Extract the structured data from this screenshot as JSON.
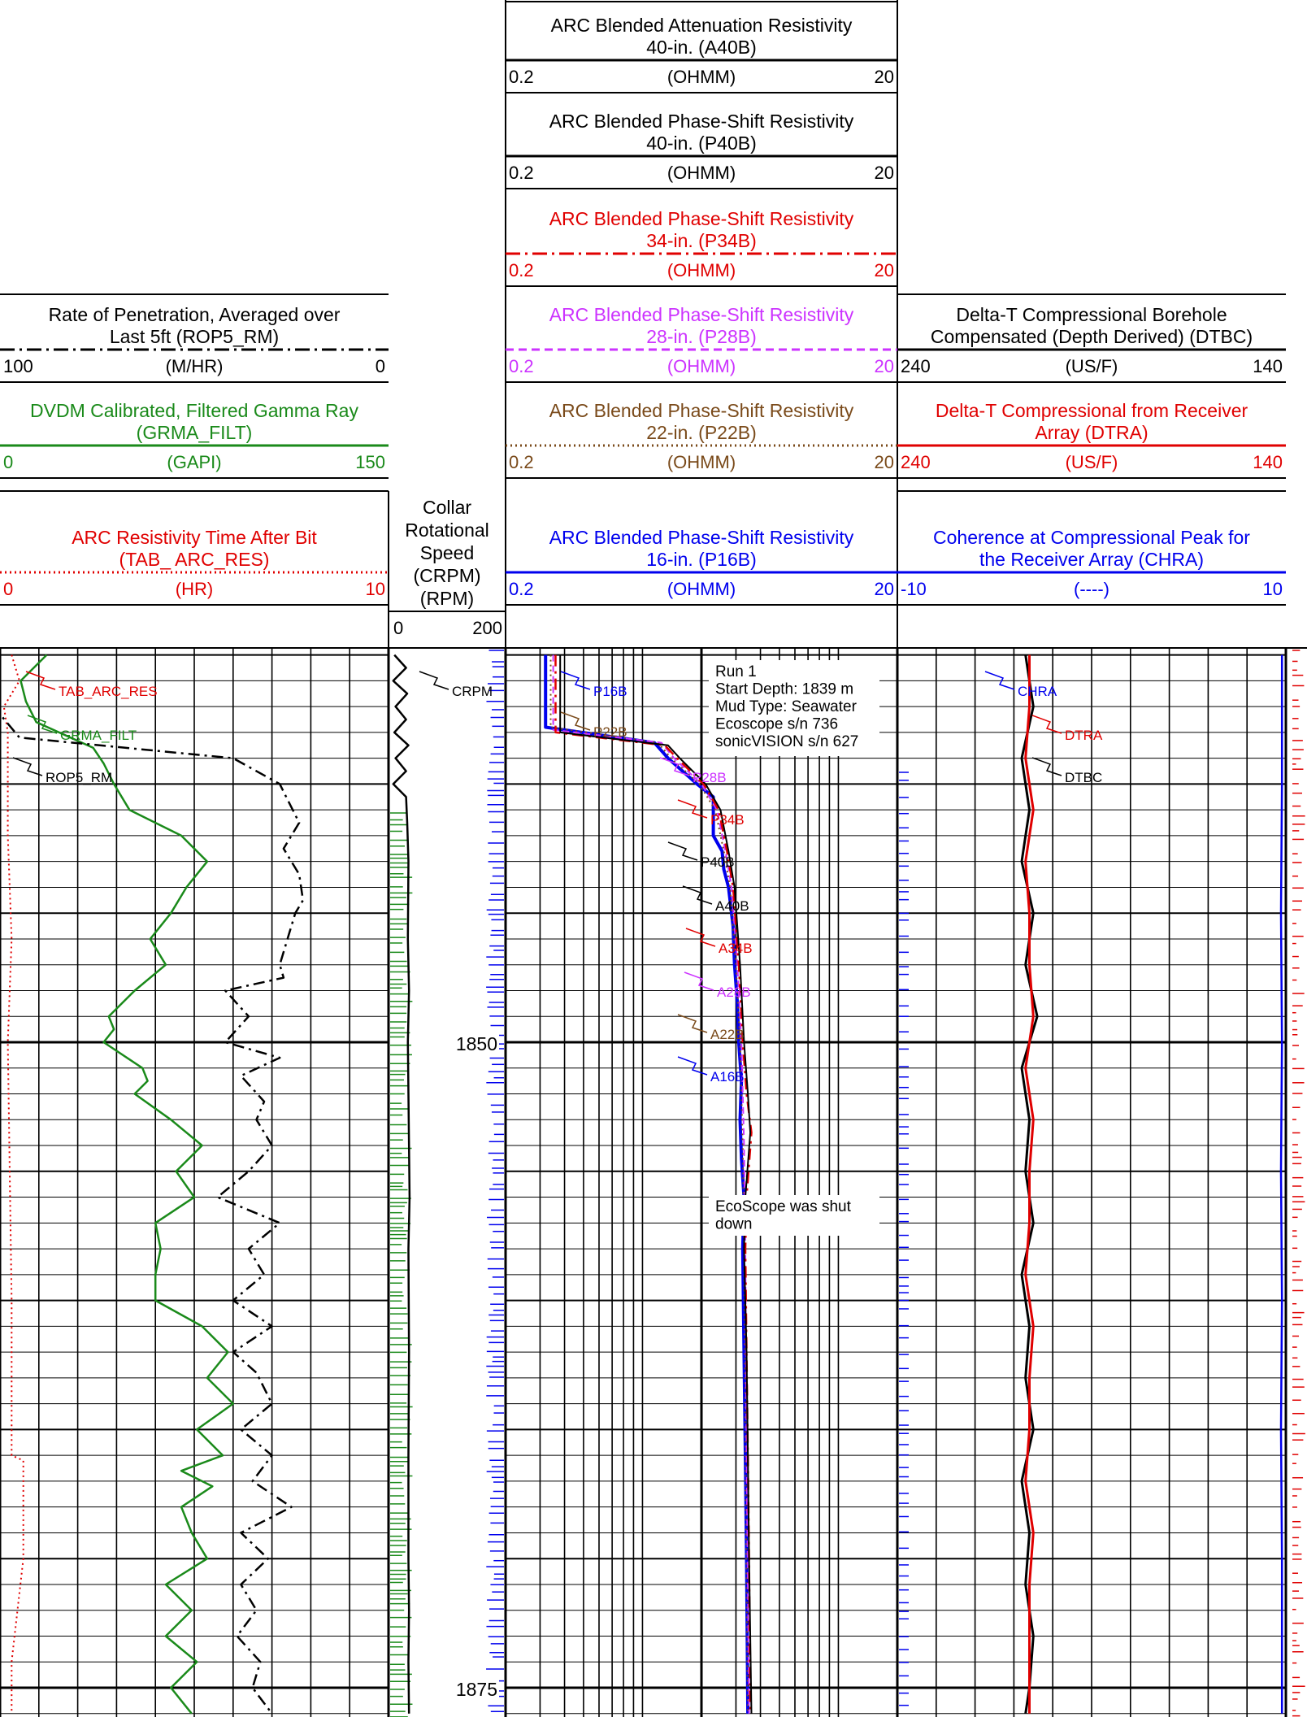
{
  "chart_data": {
    "type": "line",
    "title": "",
    "depth_unit": "m",
    "depth_range": [
      1835,
      1876
    ],
    "depth_labels": [
      "1850",
      "1875"
    ],
    "tracks": [
      {
        "id": "track1",
        "headers": [
          {
            "mnemonic": "ROP5_RM",
            "title": "Rate of Penetration, Averaged over Last 5ft (ROP5_RM)",
            "unit": "(M/HR)",
            "left": "100",
            "right": "0",
            "color": "#000000",
            "line": "dashdot"
          },
          {
            "mnemonic": "GRMA_FILT",
            "title": "DVDM Calibrated, Filtered Gamma Ray (GRMA_FILT)",
            "unit": "(GAPI)",
            "left": "0",
            "right": "150",
            "color": "#1a8a1a",
            "line": "solid"
          },
          {
            "mnemonic": "TAB_ARC_RES",
            "title": "ARC Resistivity Time After Bit (TAB_ ARC_RES)",
            "unit": "(HR)",
            "left": "0",
            "right": "10",
            "color": "#e00000",
            "line": "dotted"
          }
        ]
      },
      {
        "id": "depth",
        "headers": [
          {
            "mnemonic": "CRPM",
            "title": "Collar Rotational Speed (CRPM)",
            "unit": "(RPM)",
            "left": "0",
            "right": "200",
            "color": "#000000",
            "line": "solid"
          }
        ]
      },
      {
        "id": "track2",
        "scale": "log",
        "headers": [
          {
            "mnemonic": "A40B",
            "title": "ARC Blended Attenuation Resistivity 40-in. (A40B)",
            "unit": "(OHMM)",
            "left": "0.2",
            "right": "20",
            "color": "#000000",
            "line": "solid"
          },
          {
            "mnemonic": "P40B",
            "title": "ARC Blended Phase-Shift Resistivity 40-in. (P40B)",
            "unit": "(OHMM)",
            "left": "0.2",
            "right": "20",
            "color": "#000000",
            "line": "solid"
          },
          {
            "mnemonic": "P34B",
            "title": "ARC Blended Phase-Shift Resistivity 34-in. (P34B)",
            "unit": "(OHMM)",
            "left": "0.2",
            "right": "20",
            "color": "#e00000",
            "line": "dashdot"
          },
          {
            "mnemonic": "P28B",
            "title": "ARC Blended Phase-Shift Resistivity 28-in. (P28B)",
            "unit": "(OHMM)",
            "left": "0.2",
            "right": "20",
            "color": "#cc33ff",
            "line": "dashed"
          },
          {
            "mnemonic": "P22B",
            "title": "ARC Blended Phase-Shift Resistivity 22-in. (P22B)",
            "unit": "(OHMM)",
            "left": "0.2",
            "right": "20",
            "color": "#7a4a1a",
            "line": "dotted"
          },
          {
            "mnemonic": "P16B",
            "title": "ARC Blended Phase-Shift Resistivity 16-in. (P16B)",
            "unit": "(OHMM)",
            "left": "0.2",
            "right": "20",
            "color": "#0000ee",
            "line": "solid"
          }
        ]
      },
      {
        "id": "track3",
        "headers": [
          {
            "mnemonic": "DTBC",
            "title": "Delta-T Compressional Borehole Compensated (Depth Derived) (DTBC)",
            "unit": "(US/F)",
            "left": "240",
            "right": "140",
            "color": "#000000",
            "line": "solid"
          },
          {
            "mnemonic": "DTRA",
            "title": "Delta-T Compressional from Receiver Array (DTRA)",
            "unit": "(US/F)",
            "left": "240",
            "right": "140",
            "color": "#e00000",
            "line": "solid"
          },
          {
            "mnemonic": "CHRA",
            "title": "Coherence at Compressional Peak for the Receiver Array (CHRA)",
            "unit": "(----)",
            "left": "-10",
            "right": "10",
            "color": "#0000ee",
            "line": "solid"
          }
        ]
      }
    ],
    "series": [
      {
        "name": "TAB_ARC_RES",
        "color": "#e00000",
        "depth": [
          1835,
          1836,
          1837,
          1838,
          1840,
          1842,
          1846,
          1850,
          1860,
          1866,
          1866.2,
          1870,
          1874,
          1876
        ],
        "values": [
          0.3,
          0.5,
          0.1,
          0.2,
          0.2,
          0.2,
          0.3,
          0.2,
          0.3,
          0.3,
          0.6,
          0.6,
          0.3,
          0.3
        ]
      },
      {
        "name": "GRMA_FILT",
        "color": "#1a8a1a",
        "depth": [
          1835,
          1836,
          1836.8,
          1837.6,
          1838.6,
          1839.2,
          1840,
          1841,
          1842,
          1843,
          1844,
          1845,
          1846,
          1847,
          1848,
          1849,
          1849.5,
          1850,
          1851,
          1851.5,
          1852,
          1853,
          1854,
          1855,
          1856,
          1857,
          1858,
          1859,
          1860,
          1861,
          1862,
          1863,
          1864,
          1865,
          1866,
          1866.6,
          1867.2,
          1868,
          1869,
          1870,
          1871,
          1872,
          1873,
          1874,
          1875,
          1876
        ],
        "values": [
          18,
          8,
          10,
          14,
          36,
          40,
          44,
          50,
          70,
          80,
          72,
          66,
          58,
          64,
          52,
          42,
          44,
          40,
          55,
          57,
          52,
          66,
          78,
          68,
          75,
          60,
          62,
          60,
          60,
          78,
          88,
          80,
          90,
          76,
          86,
          70,
          82,
          70,
          74,
          80,
          64,
          74,
          64,
          76,
          66,
          74
        ]
      },
      {
        "name": "ROP5_RM",
        "color": "#000000",
        "depth": [
          1835,
          1836.5,
          1837.3,
          1838.2,
          1839,
          1840,
          1840.6,
          1841.5,
          1842.5,
          1843.5,
          1844.5,
          1845,
          1846,
          1847,
          1847.5,
          1848,
          1849,
          1850,
          1850.6,
          1851.3,
          1852.3,
          1853,
          1854,
          1855,
          1856,
          1857,
          1858,
          1859,
          1860,
          1861,
          1862,
          1862.8,
          1864,
          1865,
          1866,
          1867,
          1868,
          1869,
          1870,
          1871,
          1872,
          1873,
          1874,
          1875,
          1876
        ],
        "values": [
          100,
          100,
          100,
          95,
          40,
          28,
          26,
          23,
          27,
          23,
          22,
          24,
          26,
          28,
          27,
          42,
          36,
          42,
          28,
          38,
          32,
          34,
          30,
          36,
          44,
          28,
          36,
          32,
          40,
          30,
          40,
          34,
          30,
          38,
          30,
          35,
          25,
          38,
          31,
          38,
          34,
          39,
          33,
          35,
          30
        ]
      },
      {
        "name": "CRPM",
        "color": "#000000",
        "depth": [
          1835,
          1835.5,
          1836,
          1836.5,
          1837,
          1837.5,
          1838,
          1838.5,
          1839,
          1839.5,
          1840,
          1840.5,
          1841.5,
          1843,
          1846,
          1848,
          1850,
          1852,
          1856,
          1858,
          1862,
          1866,
          1870,
          1872,
          1874,
          1876
        ],
        "values": [
          10,
          30,
          8,
          32,
          12,
          30,
          10,
          34,
          12,
          30,
          8,
          30,
          32,
          34,
          33,
          35,
          33,
          34,
          36,
          34,
          35,
          34,
          34,
          35,
          34,
          35
        ]
      },
      {
        "name": "P16B",
        "color": "#0000ee",
        "depth": [
          1835,
          1837.8,
          1838.4,
          1839,
          1840,
          1840.5,
          1841,
          1842,
          1842.6,
          1843.3,
          1844,
          1845.5,
          1847,
          1848.5,
          1850,
          1851.5,
          1853,
          1854.5,
          1856,
          1858,
          1862,
          1866,
          1870,
          1876
        ],
        "values": [
          0.32,
          0.32,
          1.15,
          1.35,
          1.9,
          2.3,
          2.3,
          2.3,
          2.55,
          2.6,
          2.75,
          2.9,
          2.95,
          3.05,
          3.1,
          3.2,
          3.15,
          3.2,
          3.3,
          3.25,
          3.3,
          3.35,
          3.4,
          3.45
        ]
      },
      {
        "name": "P22B",
        "color": "#7a4a1a",
        "depth": [
          1835,
          1837.8,
          1838.4,
          1839,
          1840,
          1841,
          1842.6,
          1844,
          1847,
          1850,
          1854,
          1858,
          1866,
          1876
        ],
        "values": [
          0.34,
          0.34,
          1.2,
          1.4,
          1.95,
          2.35,
          2.6,
          2.8,
          3.0,
          3.15,
          3.25,
          3.3,
          3.35,
          3.45
        ]
      },
      {
        "name": "P28B",
        "color": "#cc33ff",
        "depth": [
          1835,
          1837.9,
          1838.4,
          1839,
          1840,
          1841,
          1842.6,
          1844,
          1847,
          1850,
          1854,
          1858,
          1866,
          1876
        ],
        "values": [
          0.35,
          0.35,
          1.25,
          1.45,
          2.0,
          2.4,
          2.65,
          2.85,
          3.05,
          3.2,
          3.3,
          3.35,
          3.4,
          3.5
        ]
      },
      {
        "name": "P34B",
        "color": "#e00000",
        "depth": [
          1835,
          1838,
          1838.5,
          1839,
          1840,
          1841,
          1842.6,
          1844,
          1847,
          1850,
          1852,
          1853.5,
          1856,
          1858,
          1862,
          1866,
          1870,
          1876
        ],
        "values": [
          0.36,
          0.36,
          1.3,
          1.5,
          2.05,
          2.45,
          2.7,
          2.9,
          3.1,
          3.25,
          3.4,
          3.6,
          3.4,
          3.35,
          3.4,
          3.45,
          3.5,
          3.55
        ]
      },
      {
        "name": "P40B",
        "color": "#000000",
        "depth": [
          1835,
          1838,
          1838.5,
          1839,
          1840,
          1841,
          1842.6,
          1844,
          1847,
          1850,
          1852,
          1853.5,
          1856,
          1858,
          1862,
          1866,
          1870,
          1876
        ],
        "values": [
          0.38,
          0.38,
          1.35,
          1.55,
          2.1,
          2.5,
          2.75,
          2.95,
          3.15,
          3.3,
          3.45,
          3.55,
          3.35,
          3.3,
          3.4,
          3.45,
          3.5,
          3.6
        ]
      },
      {
        "name": "DTBC",
        "color": "#000000",
        "depth": [
          1835,
          1837,
          1839,
          1841,
          1843,
          1845,
          1847,
          1849,
          1851,
          1853,
          1855,
          1857,
          1859,
          1861,
          1863,
          1865,
          1867,
          1869,
          1871,
          1873,
          1875,
          1876
        ],
        "values": [
          207,
          205,
          208,
          206,
          208,
          205,
          207,
          204,
          208,
          206,
          207,
          205,
          208,
          206,
          207,
          205,
          208,
          206,
          207,
          205,
          206,
          207
        ]
      },
      {
        "name": "DTRA",
        "color": "#e00000",
        "depth": [
          1835,
          1837,
          1839,
          1841,
          1843,
          1845,
          1847,
          1849,
          1851,
          1853,
          1855,
          1857,
          1859,
          1861,
          1863,
          1865,
          1867,
          1869,
          1871,
          1873,
          1875,
          1876
        ],
        "values": [
          206,
          206,
          207,
          205,
          207,
          206,
          206,
          205,
          207,
          205,
          206,
          206,
          207,
          205,
          206,
          206,
          207,
          205,
          206,
          206,
          206,
          206
        ]
      },
      {
        "name": "CHRA",
        "color": "#0000ee",
        "depth": [
          1835,
          1840,
          1845,
          1850,
          1855,
          1860,
          1865,
          1870,
          1876
        ],
        "values": [
          9.8,
          9.8,
          9.75,
          9.8,
          9.75,
          9.8,
          9.75,
          9.8,
          9.8
        ]
      }
    ],
    "curve_labels": [
      "TAB_ARC_RES",
      "GRMA_FILT",
      "ROP5_RM",
      "CRPM",
      "P16B",
      "P22B",
      "P28B",
      "P34B",
      "P40B",
      "A40B",
      "A34B",
      "A28B",
      "A22B",
      "A16B",
      "CHRA",
      "DTRA",
      "DTBC"
    ],
    "annotations": [
      {
        "lines": [
          "Run 1",
          "Start Depth: 1839 m",
          "Mud Type: Seawater",
          "Ecoscope s/n 736",
          "sonicVISION s/n 627"
        ]
      },
      {
        "lines": [
          "EcoScope was shut",
          "down"
        ]
      }
    ]
  }
}
